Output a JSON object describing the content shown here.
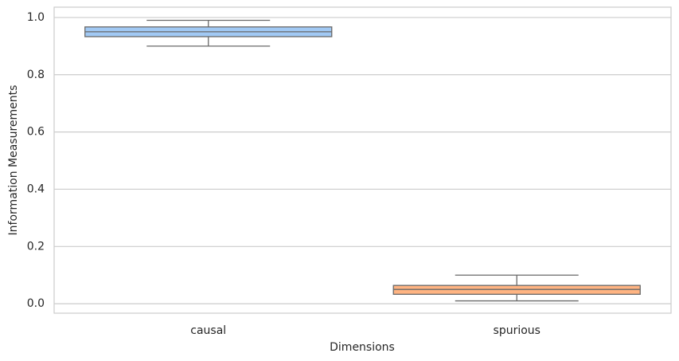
{
  "chart_data": {
    "type": "box",
    "xlabel": "Dimensions",
    "ylabel": "Information Measurements",
    "ylim": [
      -0.033,
      1.036
    ],
    "yticks": [
      {
        "value": 0,
        "label": "0.0"
      },
      0.2,
      0.4,
      0.6,
      0.8,
      {
        "value": 1,
        "label": "1.0"
      }
    ],
    "grid": true,
    "boxes": [
      {
        "category": "causal",
        "color": "#a1c9f4",
        "whisker_low": 0.9,
        "q1": 0.933,
        "median": 0.95,
        "q3": 0.967,
        "whisker_high": 0.99
      },
      {
        "category": "spurious",
        "color": "#ffb482",
        "whisker_low": 0.01,
        "q1": 0.033,
        "median": 0.05,
        "q3": 0.064,
        "whisker_high": 0.1
      }
    ]
  }
}
